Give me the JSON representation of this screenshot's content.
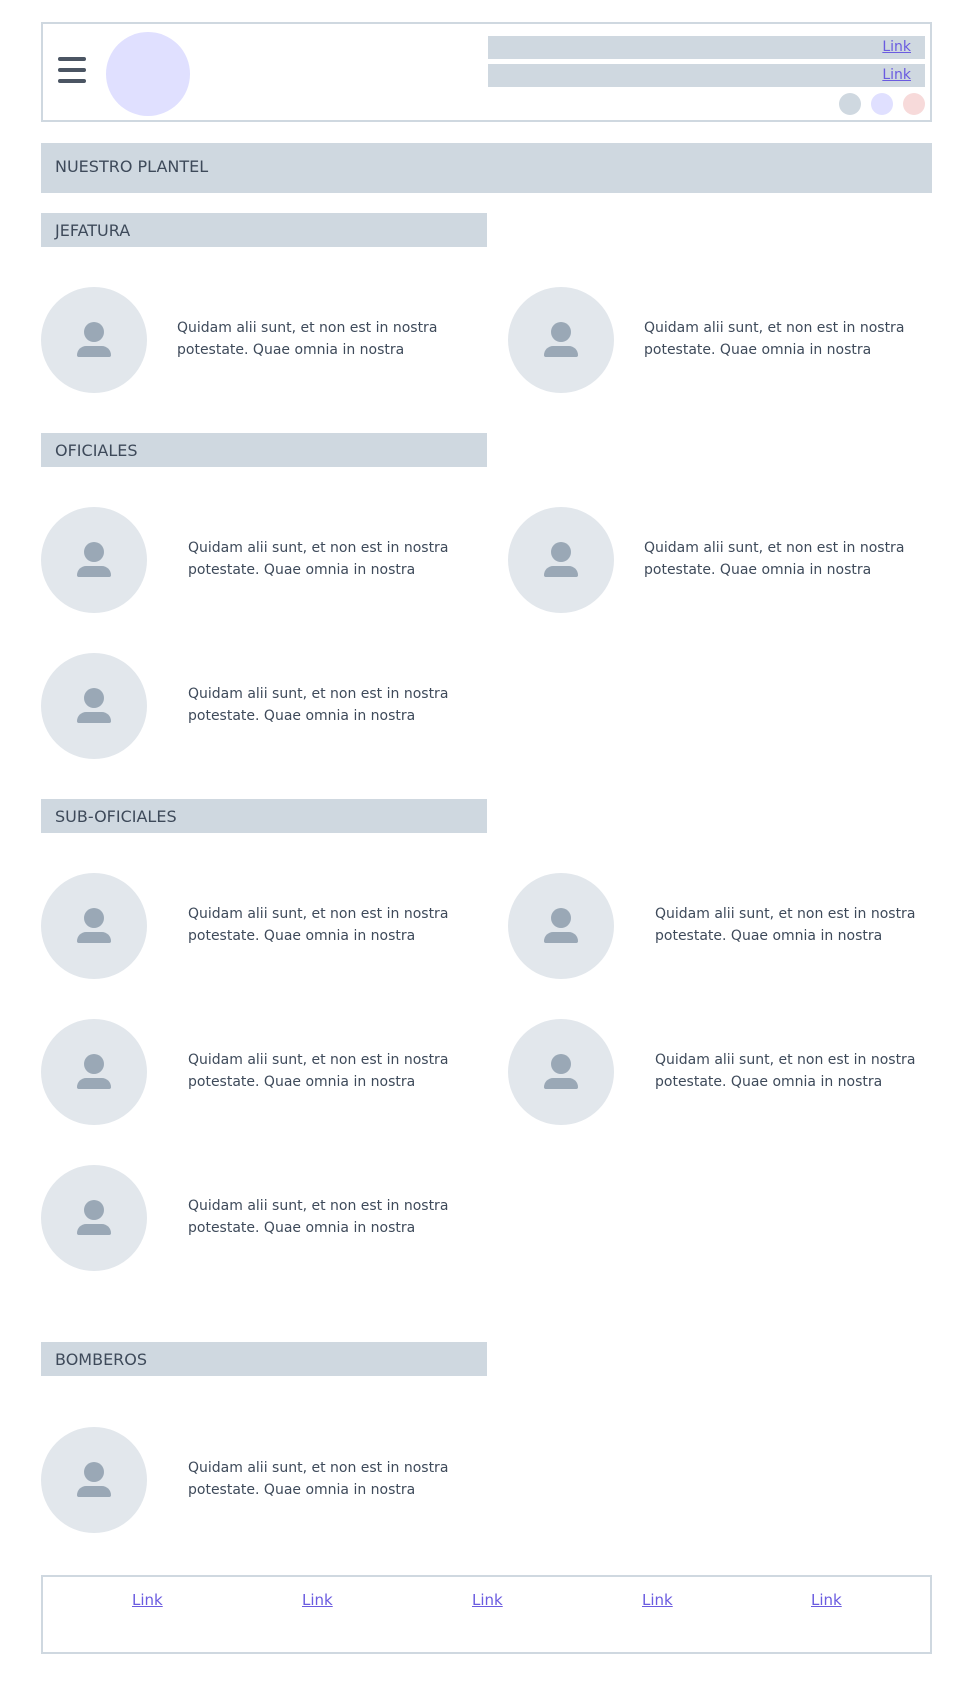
{
  "header": {
    "top_links": [
      "Link",
      "Link"
    ],
    "dot_colors": [
      "#cfd8e0",
      "#e0e0ff",
      "#f7dada"
    ]
  },
  "page_title": "NUESTRO PLANTEL",
  "sections": [
    {
      "title": "JEFATURA",
      "items": [
        "Quidam alii sunt, et non est in nostra potestate. Quae omnia in nostra",
        "Quidam alii sunt, et non est in nostra potestate. Quae omnia in nostra"
      ]
    },
    {
      "title": "OFICIALES",
      "items": [
        "Quidam alii sunt, et non est in nostra potestate. Quae omnia in nostra",
        "Quidam alii sunt, et non est in nostra potestate. Quae omnia in nostra",
        "Quidam alii sunt, et non est in nostra potestate. Quae omnia in nostra"
      ]
    },
    {
      "title": "SUB-OFICIALES",
      "items": [
        "Quidam alii sunt, et non est in nostra potestate. Quae omnia in nostra",
        "Quidam alii sunt, et non est in nostra potestate. Quae omnia in nostra",
        "Quidam alii sunt, et non est in nostra potestate. Quae omnia in nostra",
        "Quidam alii sunt, et non est in nostra potestate. Quae omnia in nostra",
        "Quidam alii sunt, et non est in nostra potestate. Quae omnia in nostra"
      ]
    },
    {
      "title": "BOMBEROS",
      "items": [
        "Quidam alii sunt, et non est in nostra potestate. Quae omnia in nostra"
      ]
    }
  ],
  "footer": {
    "links": [
      "Link",
      "Link",
      "Link",
      "Link",
      "Link"
    ]
  },
  "icons": {
    "menu": "hamburger-menu-icon",
    "person": "person-icon"
  }
}
